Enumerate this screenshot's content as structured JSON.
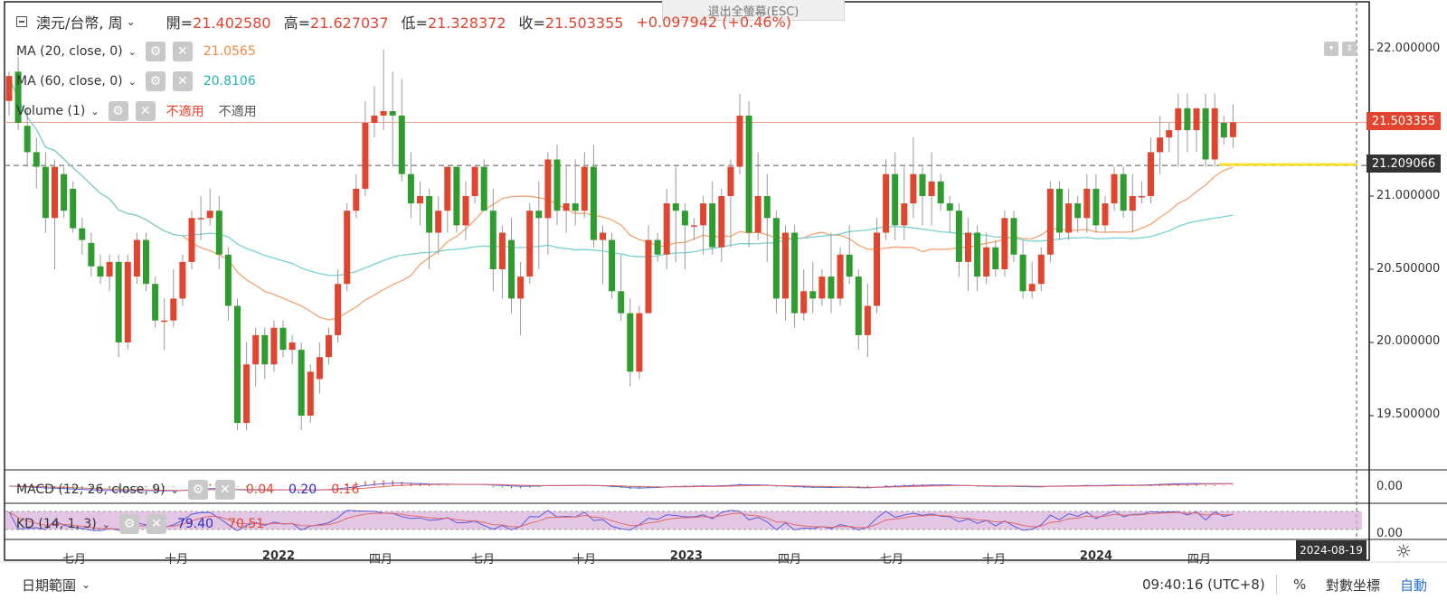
{
  "header": {
    "symbol": "澳元/台幣, 周",
    "open_label": "開=",
    "open": "21.402580",
    "high_label": "高=",
    "high": "21.627037",
    "low_label": "低=",
    "low": "21.328372",
    "close_label": "收=",
    "close": "21.503355",
    "change": "+0.097942 (+0.46%)"
  },
  "exit_fullscreen": "退出全螢幕(ESC)",
  "indicators": {
    "ma20": {
      "label": "MA (20, close, 0)",
      "value": "21.0565"
    },
    "ma60": {
      "label": "MA (60, close, 0)",
      "value": "20.8106"
    },
    "volume": {
      "label": "Volume (1)",
      "value1": "不適用",
      "value2": "不適用"
    },
    "macd": {
      "label": "MACD (12, 26, close, 9)",
      "v1": "0.04",
      "v2": "0.20",
      "v3": "0.16"
    },
    "kd": {
      "label": "KD (14, 1, 3)",
      "k": "79.40",
      "d": "70.51"
    }
  },
  "price_axis": [
    "22.000000",
    "21.000000",
    "20.500000",
    "20.000000",
    "19.500000"
  ],
  "price_tags": {
    "last": "21.503355",
    "crosshair": "21.209066"
  },
  "macd_axis": "0.00",
  "kd_axis": "0.00",
  "time_axis": [
    "七月",
    "十月",
    "2022",
    "四月",
    "七月",
    "十月",
    "2023",
    "四月",
    "七月",
    "十月",
    "2024",
    "四月"
  ],
  "date_badge": "2024-08-19",
  "footer": {
    "range": "日期範圍",
    "clock": "09:40:16 (UTC+8)",
    "percent": "%",
    "log": "對數坐標",
    "auto": "自動"
  },
  "colors": {
    "up": "#e2452f",
    "down": "#2e9c2e",
    "ma20": "#f4a371",
    "ma60": "#79d2d2",
    "highlight": "#f5e02c"
  },
  "chart_data": {
    "type": "candlestick",
    "title": "澳元/台幣, 周",
    "ylim": [
      19.0,
      22.3
    ],
    "last_close": 21.503355,
    "candles": [
      {
        "o": 21.65,
        "h": 21.85,
        "l": 21.55,
        "c": 21.82
      },
      {
        "o": 21.85,
        "h": 21.95,
        "l": 21.45,
        "c": 21.5
      },
      {
        "o": 21.48,
        "h": 21.6,
        "l": 21.2,
        "c": 21.3
      },
      {
        "o": 21.3,
        "h": 21.4,
        "l": 21.05,
        "c": 21.2
      },
      {
        "o": 21.2,
        "h": 21.3,
        "l": 20.75,
        "c": 20.85
      },
      {
        "o": 20.85,
        "h": 21.25,
        "l": 20.5,
        "c": 21.2
      },
      {
        "o": 21.15,
        "h": 21.2,
        "l": 20.85,
        "c": 20.9
      },
      {
        "o": 21.05,
        "h": 21.1,
        "l": 20.75,
        "c": 20.78
      },
      {
        "o": 20.78,
        "h": 20.85,
        "l": 20.6,
        "c": 20.7
      },
      {
        "o": 20.68,
        "h": 20.75,
        "l": 20.45,
        "c": 20.52
      },
      {
        "o": 20.52,
        "h": 20.6,
        "l": 20.4,
        "c": 20.45
      },
      {
        "o": 20.45,
        "h": 20.6,
        "l": 20.35,
        "c": 20.55
      },
      {
        "o": 20.55,
        "h": 20.6,
        "l": 19.9,
        "c": 20.0
      },
      {
        "o": 20.0,
        "h": 20.6,
        "l": 19.95,
        "c": 20.55
      },
      {
        "o": 20.45,
        "h": 20.75,
        "l": 20.4,
        "c": 20.7
      },
      {
        "o": 20.7,
        "h": 20.75,
        "l": 20.35,
        "c": 20.4
      },
      {
        "o": 20.4,
        "h": 20.45,
        "l": 20.1,
        "c": 20.15
      },
      {
        "o": 20.15,
        "h": 20.3,
        "l": 19.95,
        "c": 20.15
      },
      {
        "o": 20.15,
        "h": 20.5,
        "l": 20.1,
        "c": 20.3
      },
      {
        "o": 20.3,
        "h": 20.6,
        "l": 20.25,
        "c": 20.55
      },
      {
        "o": 20.55,
        "h": 20.9,
        "l": 20.5,
        "c": 20.85
      },
      {
        "o": 20.85,
        "h": 21.0,
        "l": 20.7,
        "c": 20.85
      },
      {
        "o": 20.85,
        "h": 21.05,
        "l": 20.8,
        "c": 20.9
      },
      {
        "o": 20.9,
        "h": 21.0,
        "l": 20.5,
        "c": 20.6
      },
      {
        "o": 20.6,
        "h": 20.65,
        "l": 20.15,
        "c": 20.25
      },
      {
        "o": 20.25,
        "h": 20.3,
        "l": 19.4,
        "c": 19.45
      },
      {
        "o": 19.45,
        "h": 20.0,
        "l": 19.4,
        "c": 19.85
      },
      {
        "o": 19.85,
        "h": 20.1,
        "l": 19.7,
        "c": 20.05
      },
      {
        "o": 20.05,
        "h": 20.1,
        "l": 19.75,
        "c": 19.85
      },
      {
        "o": 19.85,
        "h": 20.15,
        "l": 19.8,
        "c": 20.1
      },
      {
        "o": 20.1,
        "h": 20.15,
        "l": 19.9,
        "c": 19.95
      },
      {
        "o": 19.95,
        "h": 20.05,
        "l": 19.85,
        "c": 20.0
      },
      {
        "o": 19.95,
        "h": 20.0,
        "l": 19.4,
        "c": 19.5
      },
      {
        "o": 19.5,
        "h": 19.85,
        "l": 19.45,
        "c": 19.8
      },
      {
        "o": 19.75,
        "h": 20.0,
        "l": 19.65,
        "c": 19.9
      },
      {
        "o": 19.9,
        "h": 20.1,
        "l": 19.85,
        "c": 20.05
      },
      {
        "o": 20.05,
        "h": 20.5,
        "l": 20.0,
        "c": 20.4
      },
      {
        "o": 20.4,
        "h": 20.95,
        "l": 20.35,
        "c": 20.9
      },
      {
        "o": 20.9,
        "h": 21.15,
        "l": 20.85,
        "c": 21.05
      },
      {
        "o": 21.05,
        "h": 21.65,
        "l": 21.0,
        "c": 21.5
      },
      {
        "o": 21.5,
        "h": 21.75,
        "l": 21.4,
        "c": 21.55
      },
      {
        "o": 21.55,
        "h": 22.0,
        "l": 21.45,
        "c": 21.58
      },
      {
        "o": 21.58,
        "h": 21.85,
        "l": 21.2,
        "c": 21.55
      },
      {
        "o": 21.55,
        "h": 21.8,
        "l": 21.1,
        "c": 21.15
      },
      {
        "o": 21.15,
        "h": 21.3,
        "l": 20.85,
        "c": 20.95
      },
      {
        "o": 20.95,
        "h": 21.1,
        "l": 20.8,
        "c": 21.0
      },
      {
        "o": 21.0,
        "h": 21.05,
        "l": 20.5,
        "c": 20.75
      },
      {
        "o": 20.75,
        "h": 21.0,
        "l": 20.6,
        "c": 20.9
      },
      {
        "o": 20.9,
        "h": 21.2,
        "l": 20.75,
        "c": 21.2
      },
      {
        "o": 21.2,
        "h": 21.2,
        "l": 20.75,
        "c": 20.8
      },
      {
        "o": 20.8,
        "h": 21.1,
        "l": 20.7,
        "c": 21.0
      },
      {
        "o": 21.0,
        "h": 21.2,
        "l": 20.95,
        "c": 21.2
      },
      {
        "o": 21.2,
        "h": 21.25,
        "l": 20.9,
        "c": 20.9
      },
      {
        "o": 20.9,
        "h": 21.05,
        "l": 20.35,
        "c": 20.5
      },
      {
        "o": 20.5,
        "h": 20.8,
        "l": 20.3,
        "c": 20.75
      },
      {
        "o": 20.7,
        "h": 20.85,
        "l": 20.2,
        "c": 20.3
      },
      {
        "o": 20.3,
        "h": 20.55,
        "l": 20.05,
        "c": 20.45
      },
      {
        "o": 20.45,
        "h": 20.95,
        "l": 20.4,
        "c": 20.9
      },
      {
        "o": 20.9,
        "h": 21.1,
        "l": 20.5,
        "c": 20.85
      },
      {
        "o": 20.85,
        "h": 21.3,
        "l": 20.6,
        "c": 21.25
      },
      {
        "o": 21.25,
        "h": 21.35,
        "l": 20.8,
        "c": 20.9
      },
      {
        "o": 20.9,
        "h": 21.2,
        "l": 20.75,
        "c": 20.95
      },
      {
        "o": 20.95,
        "h": 21.25,
        "l": 20.8,
        "c": 20.9
      },
      {
        "o": 20.9,
        "h": 21.3,
        "l": 20.85,
        "c": 21.2
      },
      {
        "o": 21.2,
        "h": 21.35,
        "l": 20.65,
        "c": 20.7
      },
      {
        "o": 20.7,
        "h": 20.8,
        "l": 20.4,
        "c": 20.75
      },
      {
        "o": 20.7,
        "h": 20.75,
        "l": 20.3,
        "c": 20.35
      },
      {
        "o": 20.35,
        "h": 20.6,
        "l": 20.15,
        "c": 20.2
      },
      {
        "o": 20.2,
        "h": 20.3,
        "l": 19.7,
        "c": 19.8
      },
      {
        "o": 19.8,
        "h": 20.25,
        "l": 19.75,
        "c": 20.2
      },
      {
        "o": 20.2,
        "h": 20.8,
        "l": 20.2,
        "c": 20.7
      },
      {
        "o": 20.7,
        "h": 20.75,
        "l": 20.55,
        "c": 20.6
      },
      {
        "o": 20.6,
        "h": 21.05,
        "l": 20.5,
        "c": 20.95
      },
      {
        "o": 20.95,
        "h": 21.2,
        "l": 20.55,
        "c": 20.9
      },
      {
        "o": 20.9,
        "h": 20.95,
        "l": 20.5,
        "c": 20.8
      },
      {
        "o": 20.8,
        "h": 20.85,
        "l": 20.7,
        "c": 20.8
      },
      {
        "o": 20.8,
        "h": 21.0,
        "l": 20.6,
        "c": 20.95
      },
      {
        "o": 20.95,
        "h": 21.1,
        "l": 20.6,
        "c": 20.65
      },
      {
        "o": 20.65,
        "h": 21.05,
        "l": 20.55,
        "c": 21.0
      },
      {
        "o": 21.0,
        "h": 21.25,
        "l": 20.65,
        "c": 21.2
      },
      {
        "o": 21.2,
        "h": 21.7,
        "l": 21.15,
        "c": 21.55
      },
      {
        "o": 21.55,
        "h": 21.65,
        "l": 20.65,
        "c": 20.75
      },
      {
        "o": 20.75,
        "h": 21.3,
        "l": 20.7,
        "c": 21.0
      },
      {
        "o": 21.0,
        "h": 21.15,
        "l": 20.55,
        "c": 20.85
      },
      {
        "o": 20.85,
        "h": 20.9,
        "l": 20.2,
        "c": 20.3
      },
      {
        "o": 20.3,
        "h": 20.8,
        "l": 20.15,
        "c": 20.75
      },
      {
        "o": 20.75,
        "h": 20.8,
        "l": 20.1,
        "c": 20.2
      },
      {
        "o": 20.2,
        "h": 20.5,
        "l": 20.15,
        "c": 20.35
      },
      {
        "o": 20.35,
        "h": 20.55,
        "l": 20.2,
        "c": 20.3
      },
      {
        "o": 20.3,
        "h": 20.5,
        "l": 20.25,
        "c": 20.45
      },
      {
        "o": 20.45,
        "h": 20.75,
        "l": 20.2,
        "c": 20.3
      },
      {
        "o": 20.3,
        "h": 20.65,
        "l": 20.25,
        "c": 20.6
      },
      {
        "o": 20.6,
        "h": 20.8,
        "l": 20.4,
        "c": 20.45
      },
      {
        "o": 20.45,
        "h": 20.5,
        "l": 19.95,
        "c": 20.05
      },
      {
        "o": 20.05,
        "h": 20.4,
        "l": 19.9,
        "c": 20.25
      },
      {
        "o": 20.25,
        "h": 20.85,
        "l": 20.2,
        "c": 20.75
      },
      {
        "o": 20.75,
        "h": 21.25,
        "l": 20.7,
        "c": 21.15
      },
      {
        "o": 21.15,
        "h": 21.3,
        "l": 20.7,
        "c": 20.8
      },
      {
        "o": 20.8,
        "h": 21.2,
        "l": 20.7,
        "c": 20.95
      },
      {
        "o": 20.95,
        "h": 21.4,
        "l": 20.85,
        "c": 21.15
      },
      {
        "o": 21.15,
        "h": 21.2,
        "l": 20.8,
        "c": 21.0
      },
      {
        "o": 21.0,
        "h": 21.3,
        "l": 20.8,
        "c": 21.1
      },
      {
        "o": 21.1,
        "h": 21.15,
        "l": 20.9,
        "c": 20.95
      },
      {
        "o": 20.95,
        "h": 21.0,
        "l": 20.75,
        "c": 20.9
      },
      {
        "o": 20.9,
        "h": 20.95,
        "l": 20.45,
        "c": 20.55
      },
      {
        "o": 20.55,
        "h": 20.85,
        "l": 20.35,
        "c": 20.75
      },
      {
        "o": 20.75,
        "h": 20.8,
        "l": 20.35,
        "c": 20.45
      },
      {
        "o": 20.45,
        "h": 20.75,
        "l": 20.4,
        "c": 20.65
      },
      {
        "o": 20.65,
        "h": 20.7,
        "l": 20.45,
        "c": 20.5
      },
      {
        "o": 20.5,
        "h": 20.9,
        "l": 20.45,
        "c": 20.85
      },
      {
        "o": 20.85,
        "h": 20.9,
        "l": 20.55,
        "c": 20.6
      },
      {
        "o": 20.6,
        "h": 20.7,
        "l": 20.3,
        "c": 20.35
      },
      {
        "o": 20.35,
        "h": 20.55,
        "l": 20.3,
        "c": 20.4
      },
      {
        "o": 20.4,
        "h": 20.65,
        "l": 20.35,
        "c": 20.6
      },
      {
        "o": 20.6,
        "h": 21.1,
        "l": 20.55,
        "c": 21.05
      },
      {
        "o": 21.05,
        "h": 21.1,
        "l": 20.7,
        "c": 20.75
      },
      {
        "o": 20.75,
        "h": 21.05,
        "l": 20.7,
        "c": 20.95
      },
      {
        "o": 20.95,
        "h": 21.0,
        "l": 20.75,
        "c": 20.85
      },
      {
        "o": 20.85,
        "h": 21.15,
        "l": 20.75,
        "c": 21.05
      },
      {
        "o": 21.05,
        "h": 21.15,
        "l": 20.75,
        "c": 20.8
      },
      {
        "o": 20.8,
        "h": 21.0,
        "l": 20.75,
        "c": 20.95
      },
      {
        "o": 20.95,
        "h": 21.2,
        "l": 20.9,
        "c": 21.15
      },
      {
        "o": 21.15,
        "h": 21.2,
        "l": 20.85,
        "c": 20.9
      },
      {
        "o": 20.9,
        "h": 21.15,
        "l": 20.75,
        "c": 21.0
      },
      {
        "o": 21.0,
        "h": 21.1,
        "l": 20.95,
        "c": 21.0
      },
      {
        "o": 21.0,
        "h": 21.4,
        "l": 20.95,
        "c": 21.3
      },
      {
        "o": 21.3,
        "h": 21.55,
        "l": 21.15,
        "c": 21.4
      },
      {
        "o": 21.4,
        "h": 21.5,
        "l": 21.3,
        "c": 21.45
      },
      {
        "o": 21.45,
        "h": 21.7,
        "l": 21.2,
        "c": 21.6
      },
      {
        "o": 21.6,
        "h": 21.7,
        "l": 21.3,
        "c": 21.45
      },
      {
        "o": 21.45,
        "h": 21.6,
        "l": 21.3,
        "c": 21.6
      },
      {
        "o": 21.6,
        "h": 21.7,
        "l": 21.2,
        "c": 21.25
      },
      {
        "o": 21.25,
        "h": 21.7,
        "l": 21.2,
        "c": 21.6
      },
      {
        "o": 21.5,
        "h": 21.55,
        "l": 21.35,
        "c": 21.4
      },
      {
        "o": 21.40258,
        "h": 21.627037,
        "l": 21.328372,
        "c": 21.503355
      }
    ]
  }
}
